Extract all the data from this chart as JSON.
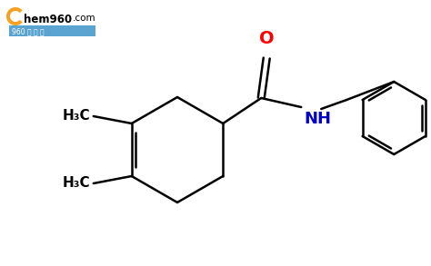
{
  "background_color": "#ffffff",
  "bond_color": "#000000",
  "oxygen_color": "#ff0000",
  "nitrogen_color": "#0000cc",
  "logo_color_C": "#f5a020",
  "logo_color_rest": "#000000",
  "figsize": [
    4.74,
    2.93
  ],
  "dpi": 100,
  "methyl1_label": "H₃C",
  "methyl2_label": "H₃C",
  "O_label": "O",
  "NH_label": "NH"
}
